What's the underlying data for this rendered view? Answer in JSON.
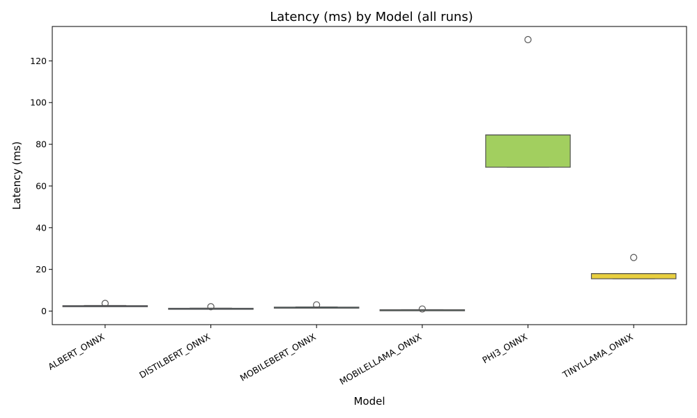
{
  "chart_data": {
    "type": "box",
    "title": "Latency (ms) by Model (all runs)",
    "xlabel": "Model",
    "ylabel": "Latency (ms)",
    "ylim": [
      -6.5,
      136.5
    ],
    "yticks": [
      0,
      20,
      40,
      60,
      80,
      100,
      120
    ],
    "grid": false,
    "legend": "none",
    "categories": [
      "ALBERT_ONNX",
      "DISTILBERT_ONNX",
      "MOBILEBERT_ONNX",
      "MOBILELLAMA_ONNX",
      "PHI3_ONNX",
      "TINYLLAMA_ONNX"
    ],
    "boxes": [
      {
        "category": "ALBERT_ONNX",
        "whisker_low": 2.2,
        "q1": 2.3,
        "median": 2.5,
        "q3": 2.6,
        "whisker_high": 2.7,
        "outliers": [
          3.7
        ],
        "color": "#3b4e8a"
      },
      {
        "category": "DISTILBERT_ONNX",
        "whisker_low": 1.2,
        "q1": 1.25,
        "median": 1.3,
        "q3": 1.35,
        "whisker_high": 1.4,
        "outliers": [
          2.1
        ],
        "color": "#2f6e8e"
      },
      {
        "category": "MOBILEBERT_ONNX",
        "whisker_low": 1.6,
        "q1": 1.7,
        "median": 1.8,
        "q3": 1.9,
        "whisker_high": 2.0,
        "outliers": [
          3.0
        ],
        "color": "#21918c"
      },
      {
        "category": "MOBILELLAMA_ONNX",
        "whisker_low": 0.5,
        "q1": 0.55,
        "median": 0.6,
        "q3": 0.65,
        "whisker_high": 0.7,
        "outliers": [
          1.0
        ],
        "color": "#35b779"
      },
      {
        "category": "PHI3_ONNX",
        "whisker_low": 69,
        "q1": 69,
        "median": 84.5,
        "q3": 84.5,
        "whisker_high": 84.5,
        "outliers": [
          130.2
        ],
        "color": "#a2cf5f"
      },
      {
        "category": "TINYLLAMA_ONNX",
        "whisker_low": 15.5,
        "q1": 15.5,
        "median": 18,
        "q3": 18,
        "whisker_high": 18,
        "outliers": [
          25.7
        ],
        "color": "#e8cf3e"
      }
    ]
  }
}
